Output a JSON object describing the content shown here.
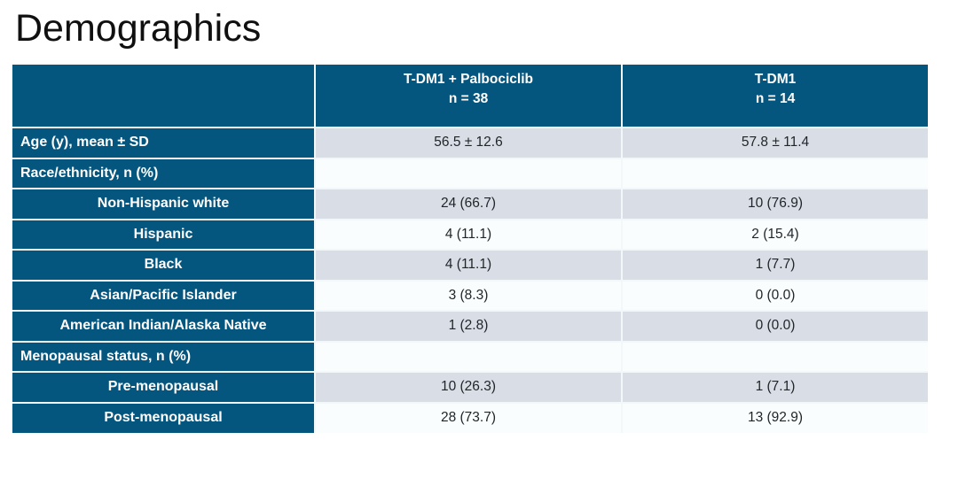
{
  "slide": {
    "title": "Demographics"
  },
  "table": {
    "columns": [
      {
        "line1": "T-DM1 + Palbociclib",
        "line2": "n = 38"
      },
      {
        "line1": "T-DM1",
        "line2": "n = 14"
      }
    ],
    "rows": [
      {
        "label": "Age (y), mean ± SD",
        "indent": false,
        "values": [
          "56.5 ± 12.6",
          "57.8 ± 11.4"
        ]
      },
      {
        "label": "Race/ethnicity, n (%)",
        "indent": false,
        "values": [
          "",
          ""
        ]
      },
      {
        "label": "Non-Hispanic white",
        "indent": true,
        "values": [
          "24 (66.7)",
          "10 (76.9)"
        ]
      },
      {
        "label": "Hispanic",
        "indent": true,
        "values": [
          "4 (11.1)",
          "2 (15.4)"
        ]
      },
      {
        "label": "Black",
        "indent": true,
        "values": [
          "4 (11.1)",
          "1 (7.7)"
        ]
      },
      {
        "label": "Asian/Pacific Islander",
        "indent": true,
        "values": [
          "3 (8.3)",
          "0 (0.0)"
        ]
      },
      {
        "label": "American Indian/Alaska Native",
        "indent": true,
        "values": [
          "1 (2.8)",
          "0 (0.0)"
        ]
      },
      {
        "label": "Menopausal status, n (%)",
        "indent": false,
        "values": [
          "",
          ""
        ]
      },
      {
        "label": "Pre-menopausal",
        "indent": true,
        "values": [
          "10 (26.3)",
          "1 (7.1)"
        ]
      },
      {
        "label": "Post-menopausal",
        "indent": true,
        "values": [
          "28 (73.7)",
          "13 (92.9)"
        ]
      }
    ]
  },
  "theme": {
    "header_bg": "#05567e",
    "header_text": "#ffffff",
    "row_gray": "#d9dee6",
    "row_light": "#fafdfd",
    "divider": "#f2f8fa",
    "data_text": "#1f2428",
    "title_text": "#101010"
  }
}
